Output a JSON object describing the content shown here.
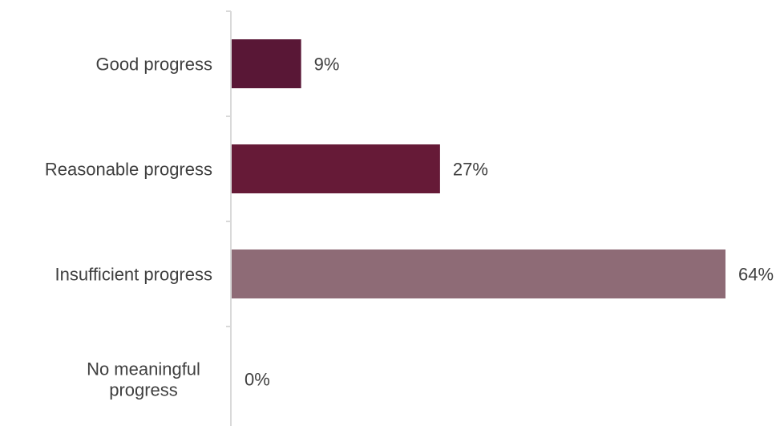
{
  "chart_data": {
    "type": "bar",
    "orientation": "horizontal",
    "title": "",
    "xlabel": "",
    "ylabel": "",
    "categories": [
      "Good progress",
      "Reasonable progress",
      "Insufficient progress",
      "No meaningful progress"
    ],
    "values": [
      9,
      27,
      64,
      0
    ],
    "data_labels": [
      "9%",
      "27%",
      "64%",
      "0%"
    ],
    "value_unit": "%",
    "xlim": [
      0,
      64
    ],
    "colors": [
      "#591736",
      "#661a37",
      "#8e6b76",
      "#8e6b76"
    ],
    "axis_color": "#d9d9d9",
    "label_color": "#3f3f3f",
    "grid": false,
    "legend": "none"
  }
}
